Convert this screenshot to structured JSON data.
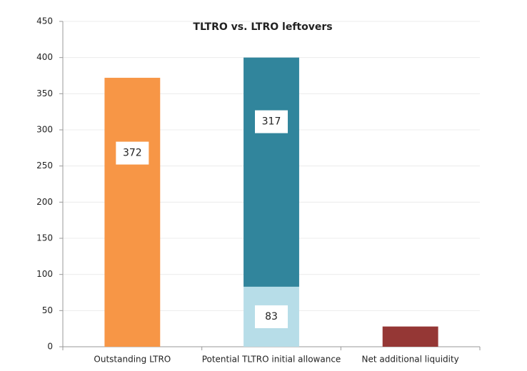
{
  "chart_data": {
    "type": "stacked_bar",
    "title": "TLTRO vs. LTRO leftovers",
    "categories": [
      "Outstanding LTRO",
      "Potential TLTRO initial allowance",
      "Net additional liquidity"
    ],
    "series": [
      {
        "color": "#f79646",
        "values": [
          372,
          null,
          null
        ],
        "show_labels": true
      },
      {
        "color": "#b7dde8",
        "values": [
          null,
          83,
          null
        ],
        "show_labels": true
      },
      {
        "color": "#31859c",
        "values": [
          null,
          317,
          null
        ],
        "show_labels": true
      },
      {
        "color": "#953735",
        "values": [
          null,
          null,
          28
        ],
        "show_labels": false
      }
    ],
    "ylim": [
      0,
      450
    ],
    "yticks": [
      0,
      50,
      100,
      150,
      200,
      250,
      300,
      350,
      400,
      450
    ],
    "grid": true
  }
}
